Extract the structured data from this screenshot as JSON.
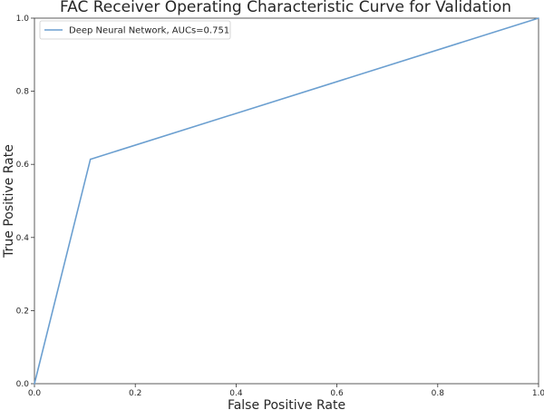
{
  "chart_data": {
    "type": "line",
    "title": "FAC Receiver Operating Characteristic Curve for Validation",
    "xlabel": "False Positive Rate",
    "ylabel": "True Positive Rate",
    "xlim": [
      0.0,
      1.0
    ],
    "ylim": [
      0.0,
      1.0
    ],
    "xticks": [
      "0.0",
      "0.2",
      "0.4",
      "0.6",
      "0.8",
      "1.0"
    ],
    "yticks": [
      "0.0",
      "0.2",
      "0.4",
      "0.6",
      "0.8",
      "1.0"
    ],
    "grid": false,
    "legend_position": "top-left",
    "series": [
      {
        "name": "Deep Neural Network, AUCs=0.751",
        "color": "#6b9fd0",
        "x": [
          0.0,
          0.111,
          1.0
        ],
        "y": [
          0.0,
          0.614,
          1.0
        ]
      }
    ]
  }
}
